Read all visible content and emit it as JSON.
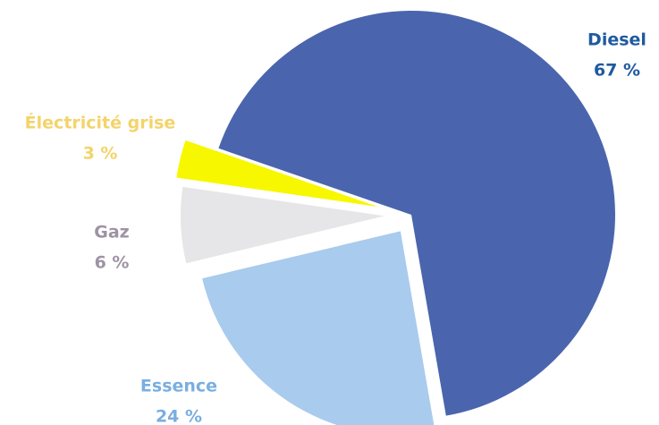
{
  "chart_data": {
    "type": "pie",
    "categories": [
      "Diesel",
      "Essence",
      "Gaz",
      "Électricité grise"
    ],
    "values": [
      67,
      24,
      6,
      3
    ],
    "value_labels": [
      "67 %",
      "24 %",
      "6 %",
      "3 %"
    ],
    "colors": [
      "#4a65ad",
      "#a9cbed",
      "#e6e5e8",
      "#f7f700"
    ],
    "label_colors": [
      "#1f5aa0",
      "#7aaee0",
      "#9e93a3",
      "#f3d36a"
    ]
  }
}
